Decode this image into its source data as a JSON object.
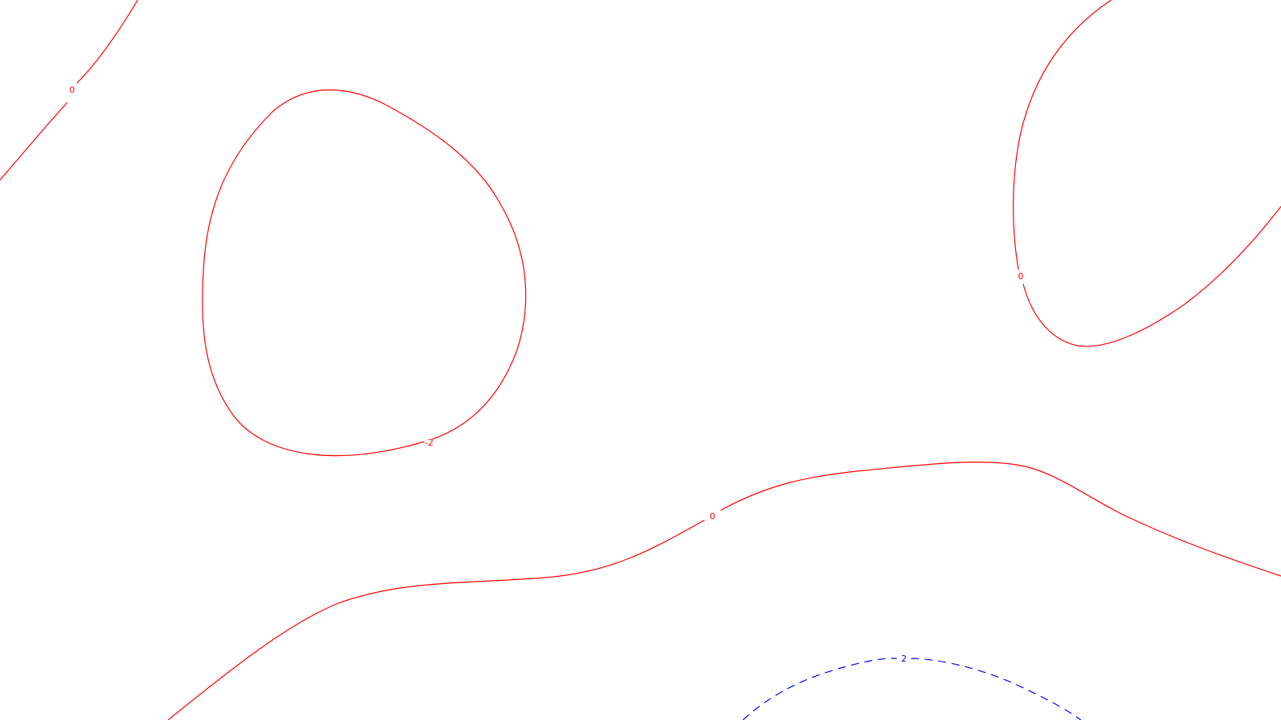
{
  "map": {
    "background": "#ffffff",
    "contours": [
      {
        "id": "contour-topleft",
        "level": "0",
        "label": "0",
        "color": "#ff0000",
        "dashed": false
      },
      {
        "id": "contour-loop",
        "level": "-2",
        "label": "-2",
        "color": "#ff0000",
        "dashed": false
      },
      {
        "id": "contour-topright",
        "level": "0",
        "label": "0",
        "color": "#ff0000",
        "dashed": false
      },
      {
        "id": "contour-middle",
        "level": "0",
        "label": "0",
        "color": "#ff0000",
        "dashed": false
      },
      {
        "id": "contour-bottom",
        "level": "2",
        "label": "2",
        "color": "#0000ff",
        "dashed": true
      }
    ]
  }
}
